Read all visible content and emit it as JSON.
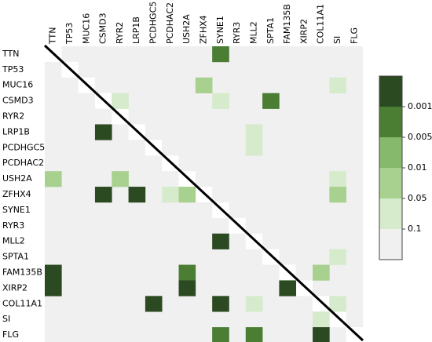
{
  "chart_data": {
    "type": "heatmap",
    "genes": [
      "TTN",
      "TP53",
      "MUC16",
      "CSMD3",
      "RYR2",
      "LRP1B",
      "PCDHGC5",
      "PCDHAC2",
      "USH2A",
      "ZFHX4",
      "SYNE1",
      "RYR3",
      "MLL2",
      "SPTA1",
      "FAM135B",
      "XIRP2",
      "COL11A1",
      "SI",
      "FLG"
    ],
    "cells": [
      {
        "row": 0,
        "col": 10,
        "value": 0.003
      },
      {
        "row": 2,
        "col": 9,
        "value": 0.03
      },
      {
        "row": 2,
        "col": 17,
        "value": 0.07
      },
      {
        "row": 3,
        "col": 4,
        "value": 0.07
      },
      {
        "row": 3,
        "col": 10,
        "value": 0.07
      },
      {
        "row": 3,
        "col": 13,
        "value": 0.003
      },
      {
        "row": 5,
        "col": 3,
        "value": 0.0005
      },
      {
        "row": 5,
        "col": 12,
        "value": 0.07
      },
      {
        "row": 6,
        "col": 12,
        "value": 0.07
      },
      {
        "row": 8,
        "col": 0,
        "value": 0.03
      },
      {
        "row": 8,
        "col": 4,
        "value": 0.03
      },
      {
        "row": 8,
        "col": 17,
        "value": 0.07
      },
      {
        "row": 9,
        "col": 3,
        "value": 0.0005
      },
      {
        "row": 9,
        "col": 5,
        "value": 0.0005
      },
      {
        "row": 9,
        "col": 7,
        "value": 0.07
      },
      {
        "row": 9,
        "col": 8,
        "value": 0.03
      },
      {
        "row": 9,
        "col": 17,
        "value": 0.03
      },
      {
        "row": 12,
        "col": 10,
        "value": 0.0005
      },
      {
        "row": 13,
        "col": 17,
        "value": 0.07
      },
      {
        "row": 14,
        "col": 0,
        "value": 0.0005
      },
      {
        "row": 14,
        "col": 8,
        "value": 0.002
      },
      {
        "row": 14,
        "col": 16,
        "value": 0.03
      },
      {
        "row": 15,
        "col": 0,
        "value": 0.0005
      },
      {
        "row": 15,
        "col": 8,
        "value": 0.0005
      },
      {
        "row": 15,
        "col": 14,
        "value": 0.0005
      },
      {
        "row": 16,
        "col": 6,
        "value": 0.0005
      },
      {
        "row": 16,
        "col": 10,
        "value": 0.0005
      },
      {
        "row": 16,
        "col": 12,
        "value": 0.07
      },
      {
        "row": 16,
        "col": 17,
        "value": 0.07
      },
      {
        "row": 17,
        "col": 16,
        "value": 0.07
      },
      {
        "row": 18,
        "col": 10,
        "value": 0.003
      },
      {
        "row": 18,
        "col": 12,
        "value": 0.003
      },
      {
        "row": 18,
        "col": 16,
        "value": 0.0005
      }
    ],
    "colorbar_ticks": [
      0.001,
      0.005,
      0.01,
      0.05,
      0.1
    ],
    "colors": [
      "#2c4a22",
      "#4b7d33",
      "#86b96b",
      "#a8d18f",
      "#d5ebcb",
      "#f0f0f0"
    ],
    "diagonal_color": "#ffffff"
  }
}
